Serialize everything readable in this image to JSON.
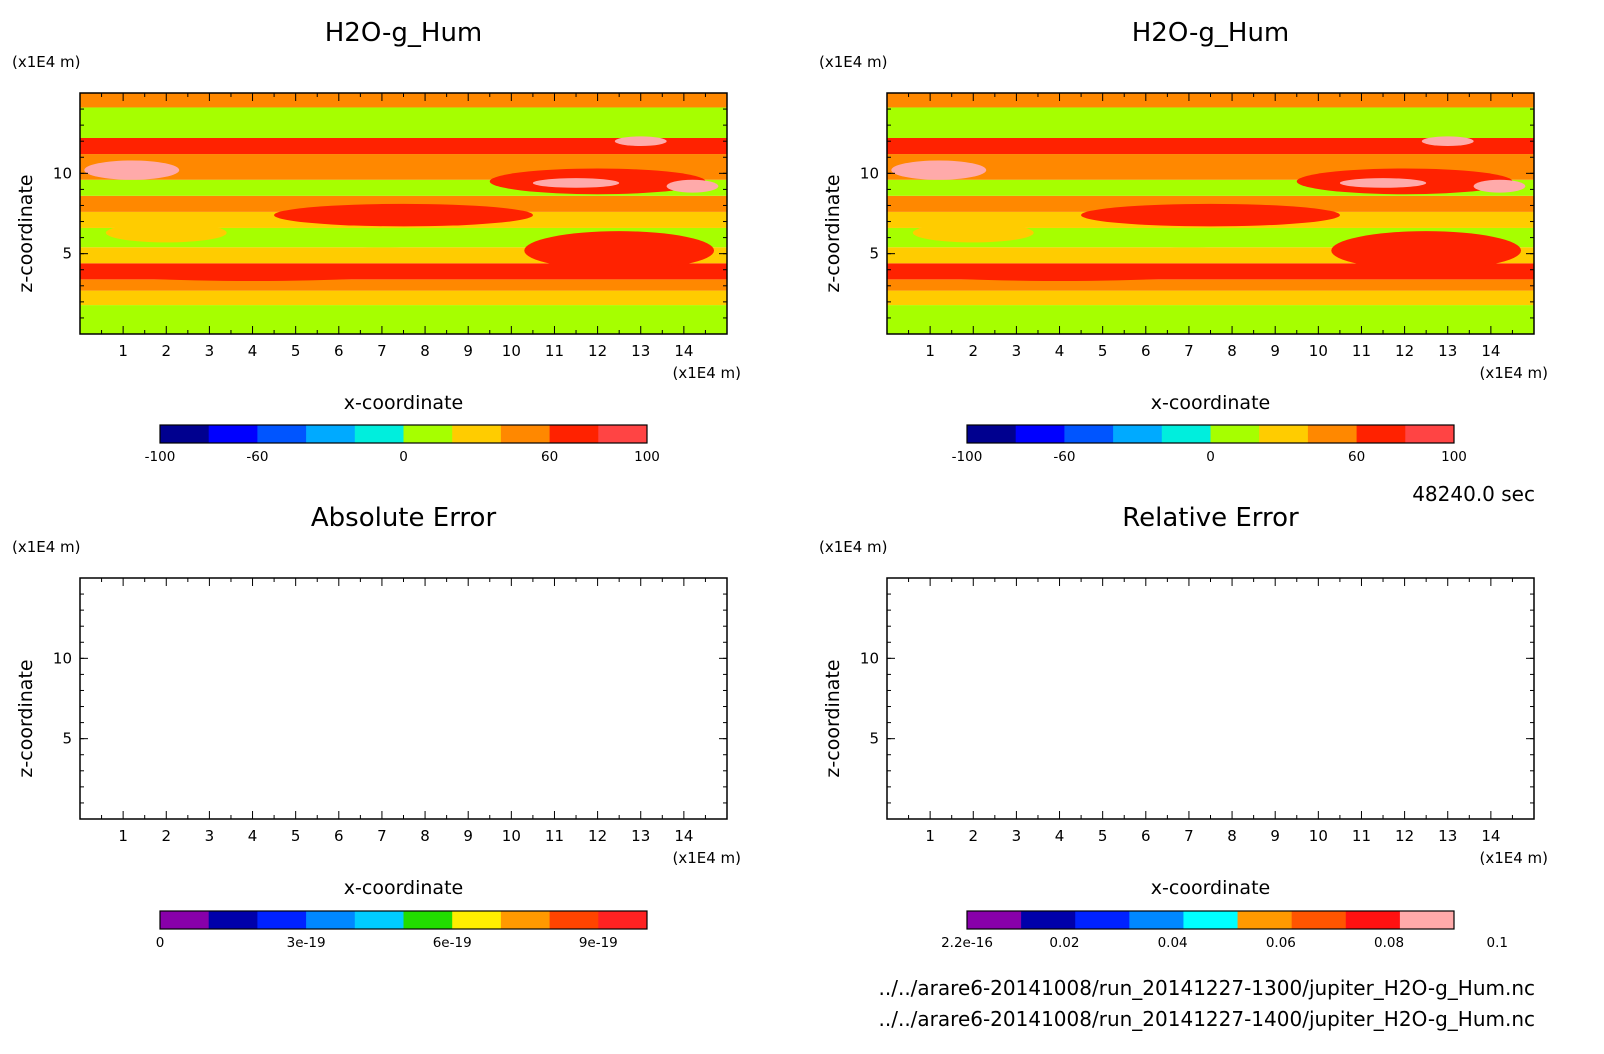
{
  "time_label": "48240.0 sec",
  "file_paths": [
    "../../arare6-20141008/run_20141227-1300/jupiter_H2O-g_Hum.nc",
    "../../arare6-20141008/run_20141227-1400/jupiter_H2O-g_Hum.nc"
  ],
  "chart_data": [
    {
      "type": "heatmap",
      "title": "H2O-g_Hum",
      "xlabel": "x-coordinate",
      "ylabel": "z-coordinate",
      "x_unit": "(x1E4 m)",
      "y_unit": "(x1E4 m)",
      "xlim": [
        0,
        15
      ],
      "ylim": [
        0,
        15
      ],
      "x_ticks": [
        "1",
        "2",
        "3",
        "4",
        "5",
        "6",
        "7",
        "8",
        "9",
        "10",
        "11",
        "12",
        "13",
        "14"
      ],
      "y_ticks": [
        "5",
        "10"
      ],
      "colorbar": {
        "colors": [
          "#00008f",
          "#0000ff",
          "#0055ff",
          "#00aaff",
          "#00eedd",
          "#a6ff00",
          "#ffcc00",
          "#ff8800",
          "#ff2200",
          "#ff4444"
        ],
        "labels": [
          "-100",
          "-60",
          "0",
          "60",
          "100"
        ],
        "label_positions": [
          0,
          2,
          5,
          8,
          10
        ]
      }
    },
    {
      "type": "heatmap",
      "title": "H2O-g_Hum",
      "xlabel": "x-coordinate",
      "ylabel": "z-coordinate",
      "x_unit": "(x1E4 m)",
      "y_unit": "(x1E4 m)",
      "xlim": [
        0,
        15
      ],
      "ylim": [
        0,
        15
      ],
      "x_ticks": [
        "1",
        "2",
        "3",
        "4",
        "5",
        "6",
        "7",
        "8",
        "9",
        "10",
        "11",
        "12",
        "13",
        "14"
      ],
      "y_ticks": [
        "5",
        "10"
      ],
      "colorbar": {
        "colors": [
          "#00008f",
          "#0000ff",
          "#0055ff",
          "#00aaff",
          "#00eedd",
          "#a6ff00",
          "#ffcc00",
          "#ff8800",
          "#ff2200",
          "#ff4444"
        ],
        "labels": [
          "-100",
          "-60",
          "0",
          "60",
          "100"
        ],
        "label_positions": [
          0,
          2,
          5,
          8,
          10
        ]
      }
    },
    {
      "type": "heatmap",
      "title": "Absolute Error",
      "xlabel": "x-coordinate",
      "ylabel": "z-coordinate",
      "x_unit": "(x1E4 m)",
      "y_unit": "(x1E4 m)",
      "xlim": [
        0,
        15
      ],
      "ylim": [
        0,
        15
      ],
      "x_ticks": [
        "1",
        "2",
        "3",
        "4",
        "5",
        "6",
        "7",
        "8",
        "9",
        "10",
        "11",
        "12",
        "13",
        "14"
      ],
      "y_ticks": [
        "5",
        "10"
      ],
      "colorbar": {
        "colors": [
          "#8800aa",
          "#0000aa",
          "#0022ff",
          "#0088ff",
          "#00ccff",
          "#22dd00",
          "#ffee00",
          "#ff9900",
          "#ff4400",
          "#ff2222"
        ],
        "labels": [
          "0",
          "3e-19",
          "6e-19",
          "9e-19"
        ],
        "label_positions": [
          0,
          3,
          6,
          9
        ]
      }
    },
    {
      "type": "heatmap",
      "title": "Relative Error",
      "xlabel": "x-coordinate",
      "ylabel": "z-coordinate",
      "x_unit": "(x1E4 m)",
      "y_unit": "(x1E4 m)",
      "xlim": [
        0,
        15
      ],
      "ylim": [
        0,
        15
      ],
      "x_ticks": [
        "1",
        "2",
        "3",
        "4",
        "5",
        "6",
        "7",
        "8",
        "9",
        "10",
        "11",
        "12",
        "13",
        "14"
      ],
      "y_ticks": [
        "5",
        "10"
      ],
      "colorbar": {
        "colors": [
          "#8800aa",
          "#0000aa",
          "#0022ff",
          "#0088ff",
          "#00ffff",
          "#ff9900",
          "#ff5500",
          "#ff1111",
          "#ffaaaa"
        ],
        "labels": [
          "2.2e-16",
          "0.02",
          "0.04",
          "0.06",
          "0.08",
          "0.1"
        ],
        "label_positions": [
          0,
          1.8,
          3.8,
          5.8,
          7.8,
          9.8
        ]
      }
    }
  ]
}
